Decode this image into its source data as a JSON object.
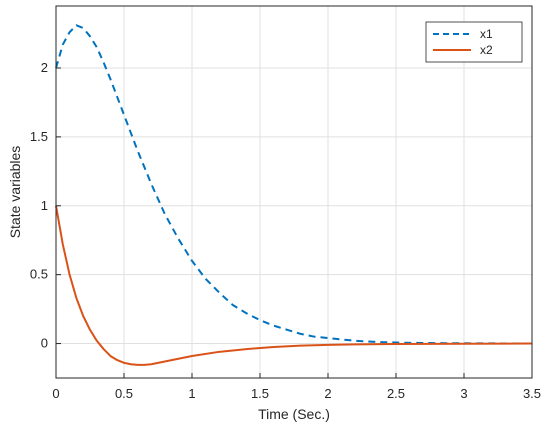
{
  "chart_data": {
    "type": "line",
    "title": "",
    "xlabel": "Time (Sec.)",
    "ylabel": "State variables",
    "xlim": [
      0,
      3.5
    ],
    "ylim": [
      -0.25,
      2.45
    ],
    "grid": true,
    "legend_position": "top-right",
    "x_ticks": [
      0,
      0.5,
      1,
      1.5,
      2,
      2.5,
      3,
      3.5
    ],
    "x_tick_labels": [
      "0",
      "0.5",
      "1",
      "1.5",
      "2",
      "2.5",
      "3",
      "3.5"
    ],
    "y_ticks": [
      0,
      0.5,
      1,
      1.5,
      2
    ],
    "y_tick_labels": [
      "0",
      "0.5",
      "1",
      "1.5",
      "2"
    ],
    "series": [
      {
        "name": "x1",
        "color": "#0072BD",
        "line_style": "dashed",
        "x": [
          0,
          0.05,
          0.1,
          0.15,
          0.2,
          0.25,
          0.3,
          0.35,
          0.4,
          0.45,
          0.5,
          0.6,
          0.7,
          0.8,
          0.9,
          1.0,
          1.1,
          1.2,
          1.3,
          1.4,
          1.5,
          1.6,
          1.7,
          1.8,
          1.9,
          2.0,
          2.2,
          2.4,
          2.6,
          2.8,
          3.0,
          3.2,
          3.5
        ],
        "y": [
          2.0,
          2.17,
          2.26,
          2.31,
          2.29,
          2.23,
          2.15,
          2.04,
          1.92,
          1.79,
          1.66,
          1.4,
          1.16,
          0.94,
          0.76,
          0.6,
          0.47,
          0.37,
          0.28,
          0.22,
          0.17,
          0.13,
          0.1,
          0.07,
          0.05,
          0.04,
          0.02,
          0.01,
          0.005,
          0.003,
          0.002,
          0.001,
          0
        ]
      },
      {
        "name": "x2",
        "color": "#D95319",
        "line_style": "solid",
        "x": [
          0,
          0.05,
          0.1,
          0.15,
          0.2,
          0.25,
          0.3,
          0.35,
          0.4,
          0.45,
          0.5,
          0.55,
          0.6,
          0.65,
          0.7,
          0.8,
          0.9,
          1.0,
          1.2,
          1.4,
          1.6,
          1.8,
          2.0,
          2.2,
          2.5,
          3.0,
          3.5
        ],
        "y": [
          1.0,
          0.72,
          0.5,
          0.33,
          0.2,
          0.1,
          0.02,
          -0.04,
          -0.09,
          -0.12,
          -0.14,
          -0.15,
          -0.155,
          -0.155,
          -0.15,
          -0.13,
          -0.11,
          -0.09,
          -0.06,
          -0.04,
          -0.025,
          -0.015,
          -0.01,
          -0.006,
          -0.003,
          -0.001,
          0
        ]
      }
    ]
  }
}
